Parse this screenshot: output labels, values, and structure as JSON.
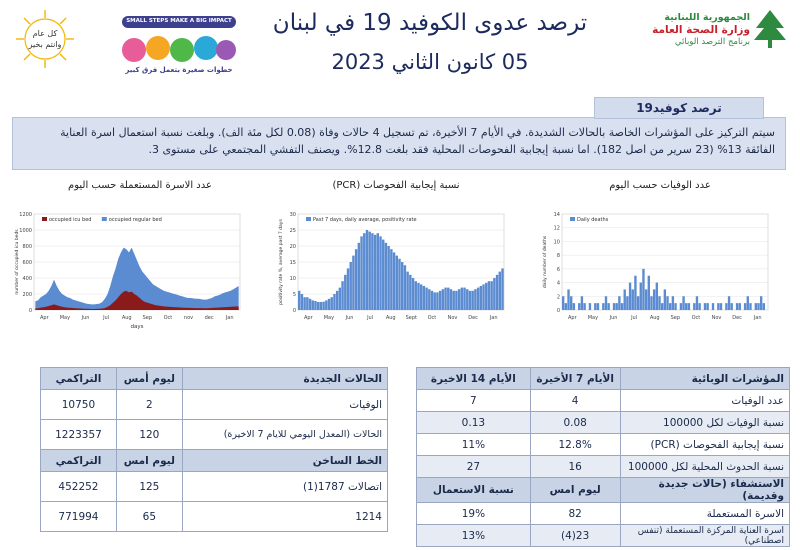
{
  "header": {
    "title": "ترصد عدوى الكوفيد 19 في لبنان",
    "date": "05 كانون الثاني 2023",
    "ministry_line1": "الجمهورية اللبنانية",
    "ministry_line2": "وزارة الصحة العامة",
    "ministry_line3": "برنامج الترصد الوبائي",
    "badge_line1": "كل عام",
    "badge_line2": "وانتم بخير",
    "banner_text": "SMALL STEPS MAKE A BIG IMPACT",
    "banner_sub": "خطوات صغيرة بتعمل فرق كبير"
  },
  "summary": {
    "tag": "ترصد كوفيد19",
    "text1": "سيتم التركيز على المؤشرات الخاصة بالحالات الشديدة. في الأيام 7 الأخيرة، تم تسجيل 4 حالات وفاة (0.08 لكل مئة الف). وبلغت نسبة استعمال اسرة العناية",
    "text2": "الفائقة 13% (23 سرير من اصل 182). اما نسبة إيجابية الفحوصات المحلية فقد بلغت 12.8%. ويصنف التفشي المجتمعي على مستوى 3."
  },
  "captions": {
    "beds": "عدد الاسرة المستعملة حسب اليوم",
    "pcr": "نسبة إيجابية الفحوصات (PCR)",
    "deaths": "عدد الوفيات حسب اليوم"
  },
  "chart_data": [
    {
      "type": "area",
      "title": "",
      "series": [
        {
          "name": "occupied icu bed",
          "color": "#8b1a1a"
        },
        {
          "name": "occupied regular bed",
          "color": "#5b8bd0"
        }
      ],
      "xlabel": "days",
      "ylabel": "number of occupied icu beds",
      "x_ticks": [
        "Apr",
        "May",
        "Jun",
        "Jul",
        "Aug",
        "Sep",
        "Oct",
        "nov",
        "dec",
        "Jan"
      ],
      "ylim": [
        0,
        1200
      ],
      "y_ticks": [
        "0",
        "200",
        "400",
        "600",
        "800",
        "1000",
        "1200"
      ],
      "regular": [
        110,
        120,
        160,
        180,
        200,
        240,
        300,
        380,
        300,
        240,
        200,
        180,
        160,
        150,
        130,
        120,
        110,
        100,
        90,
        80,
        75,
        70,
        70,
        75,
        80,
        100,
        140,
        200,
        300,
        420,
        520,
        640,
        720,
        780,
        760,
        720,
        780,
        700,
        620,
        540,
        480,
        440,
        400,
        360,
        320,
        300,
        280,
        260,
        240,
        230,
        220,
        210,
        200,
        190,
        180,
        170,
        160,
        150,
        150,
        145,
        140,
        140,
        135,
        130,
        130,
        140,
        150,
        170,
        180,
        190,
        210,
        220,
        230,
        240,
        260,
        280,
        300
      ],
      "icu": [
        20,
        22,
        30,
        35,
        40,
        50,
        60,
        70,
        60,
        50,
        40,
        35,
        30,
        28,
        25,
        22,
        20,
        18,
        16,
        15,
        14,
        13,
        13,
        14,
        15,
        18,
        25,
        40,
        60,
        90,
        120,
        160,
        200,
        230,
        240,
        220,
        230,
        200,
        180,
        150,
        120,
        100,
        90,
        80,
        70,
        60,
        55,
        50,
        45,
        42,
        40,
        38,
        36,
        34,
        32,
        30,
        28,
        26,
        26,
        25,
        24,
        24,
        23,
        22,
        22,
        24,
        26,
        28,
        30,
        32,
        34,
        36,
        38,
        40,
        42,
        44,
        46
      ]
    },
    {
      "type": "bar",
      "title": "",
      "series": [
        {
          "name": "Past 7 days, daily average, positivity rate",
          "color": "#5b8bd0"
        }
      ],
      "xlabel": "",
      "ylabel": "positivity rate %, average past 7 days",
      "x_ticks": [
        "Apr",
        "May",
        "Jun",
        "Jul",
        "Aug",
        "Sept",
        "Oct",
        "Nov",
        "Dec",
        "Jan"
      ],
      "ylim": [
        0,
        30
      ],
      "y_ticks": [
        "0",
        "5",
        "10",
        "15",
        "20",
        "25",
        "30"
      ],
      "values": [
        6,
        5,
        4,
        4,
        3.5,
        3,
        2.8,
        2.5,
        2.5,
        2.6,
        3,
        3.5,
        4,
        5,
        6,
        7,
        9,
        11,
        13,
        15,
        17,
        19,
        21,
        23,
        24,
        25,
        24.5,
        24,
        23.5,
        24,
        23,
        22,
        21,
        20,
        19,
        18,
        17,
        16,
        15,
        14,
        12,
        11,
        10,
        9,
        8.5,
        8,
        7.5,
        7,
        6.5,
        6,
        5.5,
        5.5,
        6,
        6.5,
        7,
        7,
        6.5,
        6,
        6,
        6.5,
        7,
        7,
        6.5,
        6,
        6,
        6.5,
        7,
        7.5,
        8,
        8.5,
        9,
        9,
        10,
        11,
        12,
        13
      ]
    },
    {
      "type": "bar",
      "title": "",
      "series": [
        {
          "name": "Daily deaths",
          "color": "#5b8bd0"
        }
      ],
      "xlabel": "",
      "ylabel": "daily number of deaths",
      "x_ticks": [
        "Apr",
        "May",
        "Jun",
        "Jul",
        "Aug",
        "Sep",
        "Oct",
        "Nov",
        "Dec",
        "Jan"
      ],
      "ylim": [
        0,
        14
      ],
      "y_ticks": [
        "0",
        "2",
        "4",
        "6",
        "8",
        "10",
        "12",
        "14"
      ],
      "values": [
        2,
        1,
        3,
        2,
        1,
        0,
        1,
        2,
        1,
        0,
        1,
        0,
        1,
        1,
        0,
        1,
        2,
        1,
        0,
        1,
        1,
        2,
        1,
        3,
        2,
        4,
        3,
        5,
        2,
        4,
        6,
        3,
        5,
        2,
        3,
        4,
        2,
        1,
        3,
        2,
        1,
        2,
        1,
        0,
        1,
        2,
        1,
        1,
        0,
        1,
        2,
        1,
        0,
        1,
        1,
        0,
        1,
        0,
        1,
        1,
        0,
        1,
        2,
        1,
        0,
        1,
        1,
        0,
        1,
        2,
        1,
        0,
        1,
        1,
        2,
        1,
        0
      ]
    }
  ],
  "indicators": {
    "headers": [
      "المؤشرات الوبائية",
      "الأيام 7 الأخيرة",
      "الأيام 14 الاخيرة"
    ],
    "rows": [
      [
        "عدد الوفيات",
        "4",
        "7"
      ],
      [
        "نسبة الوفيات لكل 100000",
        "0.08",
        "0.13"
      ],
      [
        "نسبة إيجابية الفحوصات (PCR)",
        "12.8%",
        "11%"
      ],
      [
        "نسبة الحدوث المحلية لكل 100000",
        "16",
        "27"
      ]
    ],
    "hosp_headers": [
      "الاستشفاء (حالات جديدة وقديمة)",
      "ليوم امس",
      "نسبة الاستعمال"
    ],
    "hosp_rows": [
      [
        "الاسرة المستعملة",
        "82",
        "19%"
      ],
      [
        "اسرة العناية المركزة المستعملة (تنفس اصطناعي)",
        "23(4)",
        "13%"
      ]
    ]
  },
  "cases": {
    "headers": [
      "الحالات الجديدة",
      "ليوم أمس",
      "التراكمي"
    ],
    "rows": [
      [
        "الوفيات",
        "2",
        "10750"
      ],
      [
        "الحالات (المعدل اليومي للايام 7 الاخيرة)",
        "120",
        "1223357"
      ]
    ],
    "hotline_headers": [
      "الخط الساخن",
      "ليوم امس",
      "التراكمي"
    ],
    "hotline_rows": [
      [
        "اتصالات 1787(1)",
        "125",
        "452252"
      ],
      [
        "1214",
        "65",
        "771994"
      ]
    ]
  }
}
